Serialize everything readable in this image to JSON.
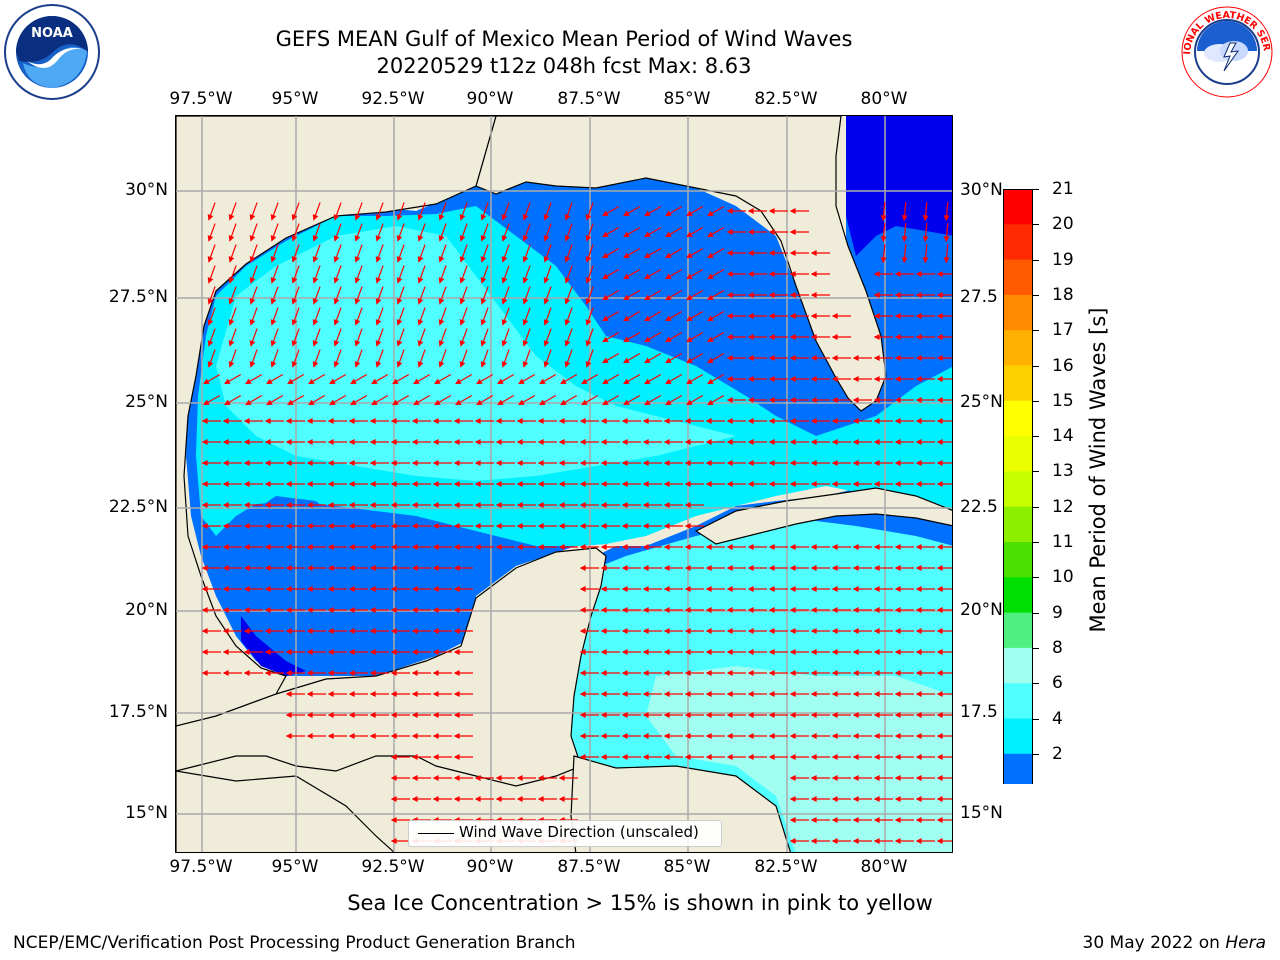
{
  "title_line1": "GEFS MEAN Gulf of Mexico Mean Period of Wind Waves",
  "title_line2": "20220529 t12z 048h fcst   Max: 8.63",
  "lon_ticks": [
    "97.5°W",
    "95°W",
    "92.5°W",
    "90°W",
    "87.5°W",
    "85°W",
    "82.5°W",
    "80°W"
  ],
  "lat_ticks_left": [
    "30°N",
    "27.5°N",
    "25°N",
    "22.5°N",
    "20°N",
    "17.5°N",
    "15°N"
  ],
  "lat_ticks_right": [
    "30°N",
    "27.5",
    "25°N",
    "22.5",
    "20°N",
    "17.5",
    "15°N"
  ],
  "colorbar": {
    "label": "Mean Period of Wind Waves [s]",
    "ticks": [
      "21",
      "20",
      "19",
      "18",
      "17",
      "16",
      "15",
      "14",
      "13",
      "12",
      "11",
      "10",
      "9",
      "8",
      "6",
      "4",
      "2"
    ],
    "colors": [
      "#ff0000",
      "#ff2a00",
      "#ff5a00",
      "#ff8a00",
      "#ffb000",
      "#ffd000",
      "#ffff00",
      "#eaff00",
      "#c8ff00",
      "#8cf000",
      "#4ce000",
      "#00e000",
      "#50f080",
      "#a0fff0",
      "#50ffff",
      "#00f0ff",
      "#0070ff",
      "#0000ee"
    ]
  },
  "legend_label": "Wind Wave Direction (unscaled)",
  "ice_note": "Sea Ice Concentration > 15% is shown in pink to yellow",
  "footer_left": "NCEP/EMC/Verification Post Processing Product Generation Branch",
  "footer_date": "30 May 2022 on ",
  "footer_host": "Hera",
  "logos": {
    "left": "NOAA",
    "right": "NATIONAL WEATHER SERVICE"
  },
  "colors": {
    "land": "#efedd9",
    "grid": "#aaaaaa",
    "arrow": "#ff0000",
    "dark_blue": "#0000ee",
    "blue": "#0070ff",
    "cyan": "#00f0ff",
    "light_cyan": "#50ffff",
    "pale_cyan": "#a0fff0"
  }
}
